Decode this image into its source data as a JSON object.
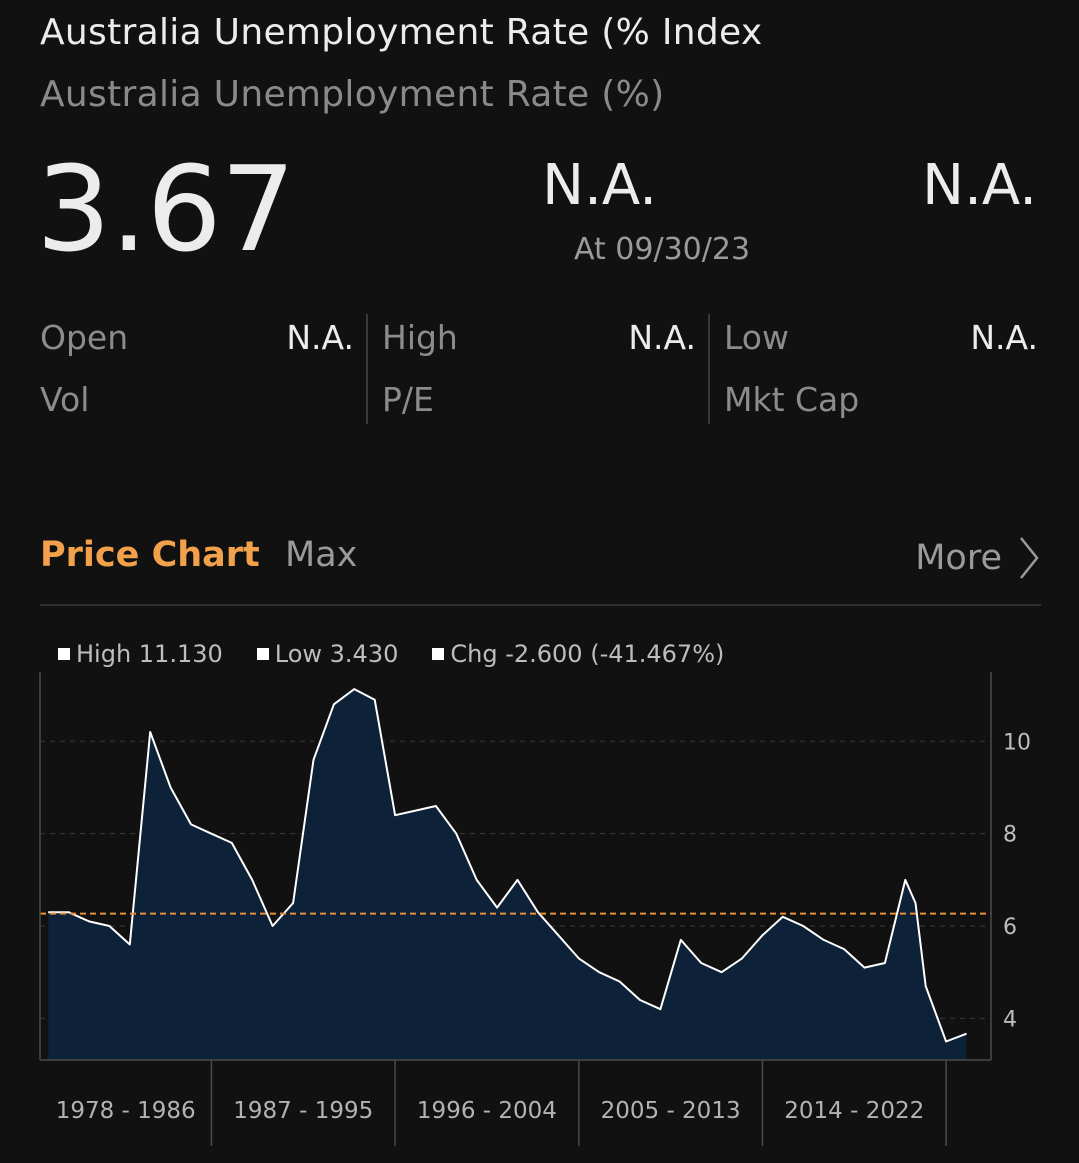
{
  "header": {
    "title": "Australia Unemployment Rate (% Index",
    "subtitle": "Australia Unemployment Rate (%)"
  },
  "quote": {
    "last_price": "3.67",
    "change": "N.A.",
    "change_pct": "N.A.",
    "as_of": "At 09/30/23"
  },
  "stats": [
    {
      "label": "Open",
      "value": "N.A."
    },
    {
      "label": "High",
      "value": "N.A."
    },
    {
      "label": "Low",
      "value": "N.A."
    },
    {
      "label": "Vol",
      "value": ""
    },
    {
      "label": "P/E",
      "value": ""
    },
    {
      "label": "Mkt Cap",
      "value": ""
    }
  ],
  "tabs": {
    "active": "Price Chart",
    "range": "Max",
    "more": "More"
  },
  "legend": {
    "high": "High 11.130",
    "low": "Low 3.430",
    "chg": "Chg -2.600 (-41.467%)"
  },
  "colors": {
    "background": "#111111",
    "accent": "#f2a14a",
    "area_fill": "#0d2138",
    "line": "#ffffff",
    "reference_line": "#e8913a"
  },
  "chart_data": {
    "type": "area",
    "x": [
      1978,
      1979,
      1980,
      1981,
      1982,
      1983,
      1984,
      1985,
      1986,
      1987,
      1988,
      1989,
      1990,
      1991,
      1992,
      1993,
      1994,
      1995,
      1996,
      1997,
      1998,
      1999,
      2000,
      2001,
      2002,
      2003,
      2004,
      2005,
      2006,
      2007,
      2008,
      2009,
      2010,
      2011,
      2012,
      2013,
      2014,
      2015,
      2016,
      2017,
      2018,
      2019,
      2020,
      2020.5,
      2021,
      2022,
      2023
    ],
    "values": [
      6.3,
      6.3,
      6.1,
      6.0,
      5.6,
      10.2,
      9.0,
      8.2,
      8.0,
      7.8,
      7.0,
      6.0,
      6.5,
      9.6,
      10.8,
      11.13,
      10.9,
      8.4,
      8.5,
      8.6,
      8.0,
      7.0,
      6.4,
      7.0,
      6.3,
      5.8,
      5.3,
      5.0,
      4.8,
      4.4,
      4.2,
      5.7,
      5.2,
      5.0,
      5.3,
      5.8,
      6.2,
      6.0,
      5.7,
      5.5,
      5.1,
      5.2,
      7.0,
      6.5,
      4.7,
      3.5,
      3.67
    ],
    "reference_line": 6.27,
    "high": 11.13,
    "low": 3.43,
    "ylim": [
      3.1,
      11.5
    ],
    "yticks": [
      4,
      6,
      8,
      10
    ],
    "xlim": [
      1977.6,
      2024.2
    ],
    "x_period_labels": [
      "1978 - 1986",
      "1987 - 1995",
      "1996 - 2004",
      "2005 - 2013",
      "2014 - 2022"
    ],
    "grid": true
  }
}
